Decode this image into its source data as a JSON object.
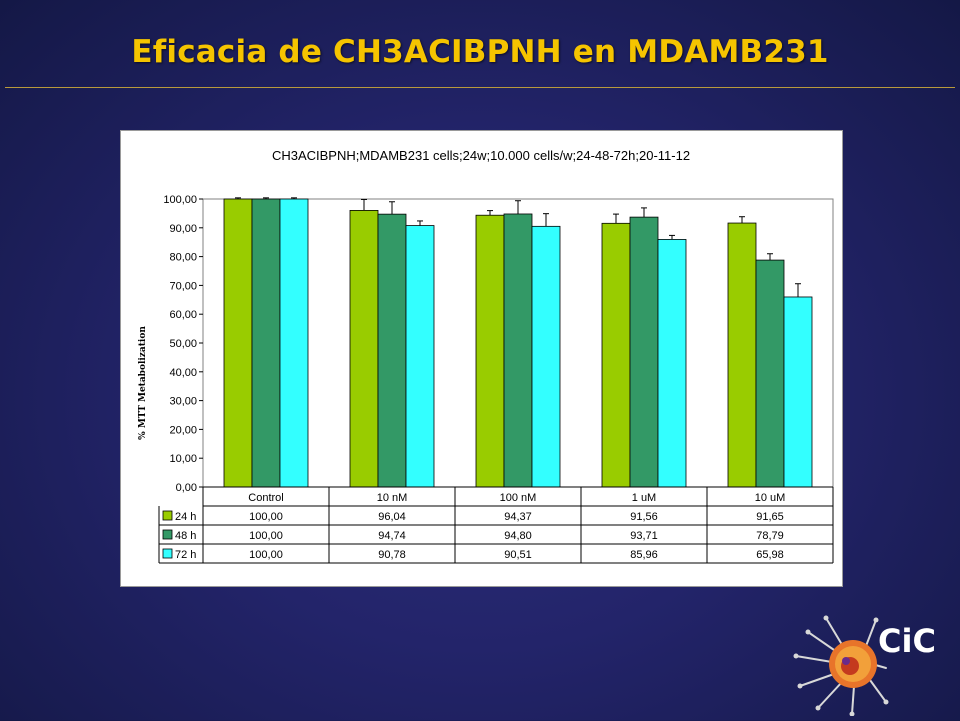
{
  "slide": {
    "title": "Eficacia de CH3ACIBPNH en MDAMB231"
  },
  "logo": {
    "text": "CiC",
    "icon": "cell-splash-logo-icon"
  },
  "colors": {
    "background": "#23246a",
    "title": "#f5c400",
    "series_24h": "#99cc00",
    "series_48h": "#339966",
    "series_72h": "#33ffff",
    "logo_orange": "#e8742a"
  },
  "chart_data": {
    "type": "bar",
    "title": "CH3ACIBPNH;MDAMB231 cells;24w;10.000 cells/w;24-48-72h;20-11-12",
    "xlabel": "",
    "ylabel": "% MTT Metabolization",
    "ylim": [
      0,
      100
    ],
    "yticks": [
      "0,00",
      "10,00",
      "20,00",
      "30,00",
      "40,00",
      "50,00",
      "60,00",
      "70,00",
      "80,00",
      "90,00",
      "100,00"
    ],
    "grid": false,
    "legend": "data-table",
    "categories": [
      "Control",
      "10 nM",
      "100 nM",
      "1 uM",
      "10 uM"
    ],
    "series": [
      {
        "name": "24 h",
        "color": "#99cc00",
        "values": [
          100.0,
          96.04,
          94.37,
          91.56,
          91.65
        ],
        "labels": [
          "100,00",
          "96,04",
          "94,37",
          "91,56",
          "91,65"
        ],
        "errors": [
          0.4,
          3.8,
          1.6,
          3.2,
          2.2
        ]
      },
      {
        "name": "48 h",
        "color": "#339966",
        "values": [
          100.0,
          94.74,
          94.8,
          93.71,
          78.79
        ],
        "labels": [
          "100,00",
          "94,74",
          "94,80",
          "93,71",
          "78,79"
        ],
        "errors": [
          0.4,
          4.3,
          4.6,
          3.2,
          2.2
        ]
      },
      {
        "name": "72 h",
        "color": "#33ffff",
        "values": [
          100.0,
          90.78,
          90.51,
          85.96,
          65.98
        ],
        "labels": [
          "100,00",
          "90,78",
          "90,51",
          "85,96",
          "65,98"
        ],
        "errors": [
          0.4,
          1.6,
          4.4,
          1.4,
          4.6
        ]
      }
    ]
  }
}
